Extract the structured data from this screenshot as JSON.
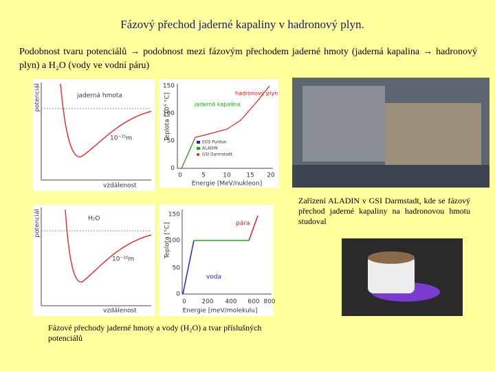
{
  "title": "Fázový přechod jaderné kapaliny v hadronový plyn.",
  "intro": "Podobnost tvaru potenciálů → podobnost mezi fázovým přechodem jaderné hmoty (jaderná kapalina → hadronový plyn) a H₂O (vody ve vodní páru)",
  "nuclear_potential": {
    "ylabel": "potenciál",
    "label": "jaderná hmota",
    "scale": "10⁻¹⁵m",
    "xlabel": "vzdálenost"
  },
  "nuclear_phase": {
    "ylabel": "Teplota [10⁹ °C]",
    "yticks": [
      150,
      100,
      50,
      0
    ],
    "xticks": [
      0,
      5,
      10,
      15,
      20
    ],
    "xlabel": "Energie [MeV/nukleon]",
    "liquid": "jaderná kapalina",
    "gas": "hadronový plyn",
    "legend": [
      "EOS Purdue",
      "ALADIN",
      "GSI Darmstadt"
    ]
  },
  "water_potential": {
    "ylabel": "potenciál",
    "label": "H₂O",
    "scale": "10⁻¹⁰m",
    "xlabel": "vzdálenost"
  },
  "water_phase": {
    "ylabel": "Teplota [°C]",
    "yticks": [
      150,
      100,
      50,
      0
    ],
    "xticks": [
      0,
      200,
      400,
      600,
      800
    ],
    "xlabel": "Energie [meV/molekulu]",
    "steam": "pára",
    "water": "voda"
  },
  "photo_caption": "Zařízení ALADIN v GSI Darmstadt, kde se fázový přechod jaderné kapaliny na hadronovou hmotu studoval",
  "bottom_caption": "Fázové přechody jaderné hmoty a vody (H₂O) a tvar příslušných potenciálů"
}
